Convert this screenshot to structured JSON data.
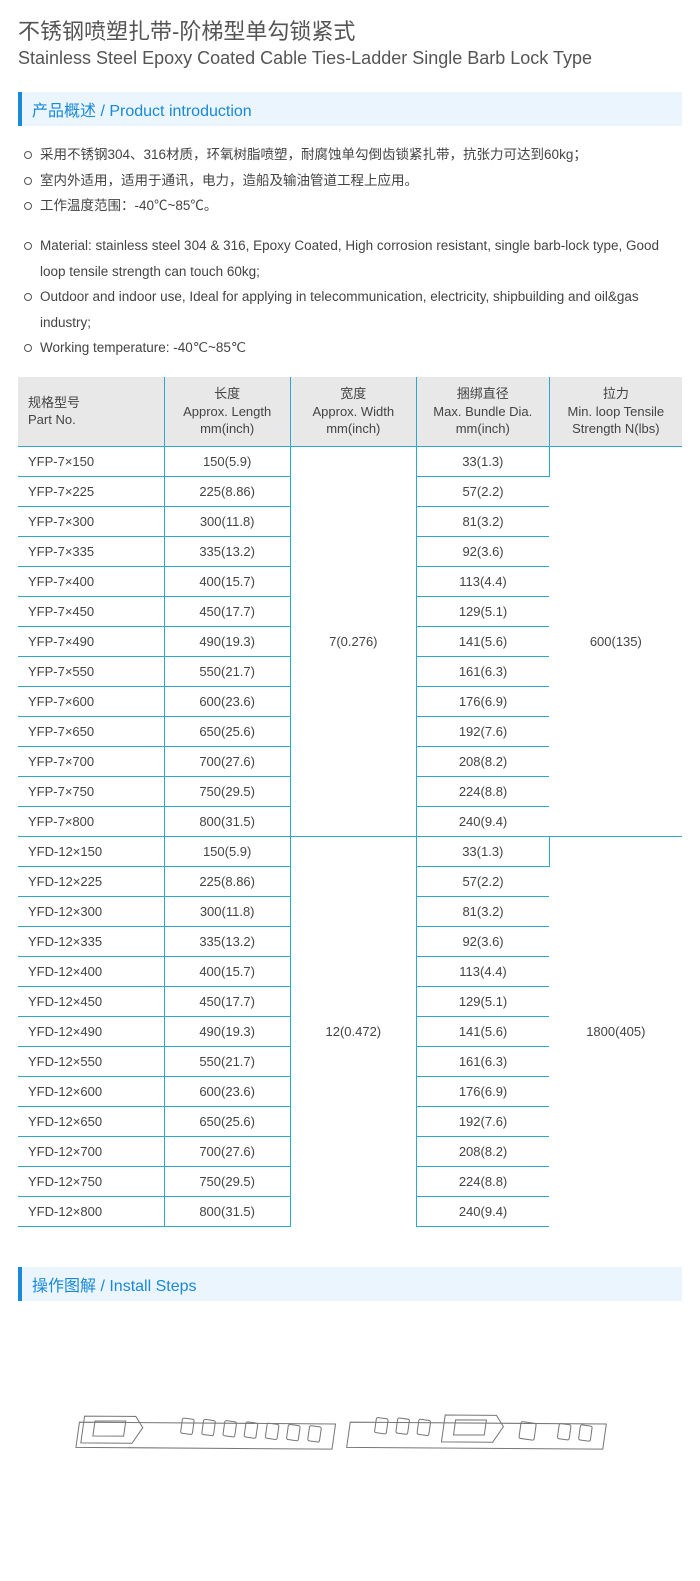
{
  "title": {
    "cn": "不锈钢喷塑扎带-阶梯型单勾锁紧式",
    "en": "Stainless Steel Epoxy Coated Cable Ties-Ladder Single Barb Lock Type"
  },
  "sections": {
    "intro": {
      "cn": "产品概述",
      "en": "Product introduction"
    },
    "install": {
      "cn": "操作图解",
      "en": "Install Steps"
    }
  },
  "bullets_cn": [
    "采用不锈钢304、316材质，环氧树脂喷塑，耐腐蚀单勾倒齿锁紧扎带，抗张力可达到60kg；",
    "室内外适用，适用于通讯，电力，造船及输油管道工程上应用。",
    "工作温度范围：-40℃~85℃。"
  ],
  "bullets_en": [
    "Material: stainless steel 304 & 316, Epoxy Coated, High corrosion resistant, single barb-lock type, Good loop tensile strength can touch 60kg;",
    "Outdoor and indoor use, Ideal for applying in telecommunication, electricity, shipbuilding and oil&gas industry;",
    "Working temperature: -40℃~85℃"
  ],
  "table": {
    "headers": [
      {
        "cn": "规格型号",
        "en": "Part No."
      },
      {
        "cn": "长度",
        "en": "Approx. Length",
        "unit": "mm(inch)"
      },
      {
        "cn": "宽度",
        "en": "Approx. Width",
        "unit": "mm(inch)"
      },
      {
        "cn": "捆绑直径",
        "en": "Max. Bundle Dia.",
        "unit": "mm(inch)"
      },
      {
        "cn": "拉力",
        "en": "Min. loop Tensile Strength N(lbs)",
        "unit": ""
      }
    ],
    "column_widths": [
      "22%",
      "19%",
      "19%",
      "20%",
      "20%"
    ],
    "groups": [
      {
        "width": "7(0.276)",
        "strength": "600(135)",
        "rows": [
          {
            "part": "YFP-7×150",
            "length": "150(5.9)",
            "bundle": "33(1.3)"
          },
          {
            "part": "YFP-7×225",
            "length": "225(8.86)",
            "bundle": "57(2.2)"
          },
          {
            "part": "YFP-7×300",
            "length": "300(11.8)",
            "bundle": "81(3.2)"
          },
          {
            "part": "YFP-7×335",
            "length": "335(13.2)",
            "bundle": "92(3.6)"
          },
          {
            "part": "YFP-7×400",
            "length": "400(15.7)",
            "bundle": "113(4.4)"
          },
          {
            "part": "YFP-7×450",
            "length": "450(17.7)",
            "bundle": "129(5.1)"
          },
          {
            "part": "YFP-7×490",
            "length": "490(19.3)",
            "bundle": "141(5.6)"
          },
          {
            "part": "YFP-7×550",
            "length": "550(21.7)",
            "bundle": "161(6.3)"
          },
          {
            "part": "YFP-7×600",
            "length": "600(23.6)",
            "bundle": "176(6.9)"
          },
          {
            "part": "YFP-7×650",
            "length": "650(25.6)",
            "bundle": "192(7.6)"
          },
          {
            "part": "YFP-7×700",
            "length": "700(27.6)",
            "bundle": "208(8.2)"
          },
          {
            "part": "YFP-7×750",
            "length": "750(29.5)",
            "bundle": "224(8.8)"
          },
          {
            "part": "YFP-7×800",
            "length": "800(31.5)",
            "bundle": "240(9.4)"
          }
        ]
      },
      {
        "width": "12(0.472)",
        "strength": "1800(405)",
        "rows": [
          {
            "part": "YFD-12×150",
            "length": "150(5.9)",
            "bundle": "33(1.3)"
          },
          {
            "part": "YFD-12×225",
            "length": "225(8.86)",
            "bundle": "57(2.2)"
          },
          {
            "part": "YFD-12×300",
            "length": "300(11.8)",
            "bundle": "81(3.2)"
          },
          {
            "part": "YFD-12×335",
            "length": "335(13.2)",
            "bundle": "92(3.6)"
          },
          {
            "part": "YFD-12×400",
            "length": "400(15.7)",
            "bundle": "113(4.4)"
          },
          {
            "part": "YFD-12×450",
            "length": "450(17.7)",
            "bundle": "129(5.1)"
          },
          {
            "part": "YFD-12×490",
            "length": "490(19.3)",
            "bundle": "141(5.6)"
          },
          {
            "part": "YFD-12×550",
            "length": "550(21.7)",
            "bundle": "161(6.3)"
          },
          {
            "part": "YFD-12×600",
            "length": "600(23.6)",
            "bundle": "176(6.9)"
          },
          {
            "part": "YFD-12×650",
            "length": "650(25.6)",
            "bundle": "192(7.6)"
          },
          {
            "part": "YFD-12×700",
            "length": "700(27.6)",
            "bundle": "208(8.2)"
          },
          {
            "part": "YFD-12×750",
            "length": "750(29.5)",
            "bundle": "224(8.8)"
          },
          {
            "part": "YFD-12×800",
            "length": "800(31.5)",
            "bundle": "240(9.4)"
          }
        ]
      }
    ]
  },
  "colors": {
    "accent": "#1989d8",
    "section_bg": "#ebf5fd",
    "table_border": "#2aa8d0",
    "table_header_bg": "#e8e8e8",
    "text": "#444444"
  }
}
